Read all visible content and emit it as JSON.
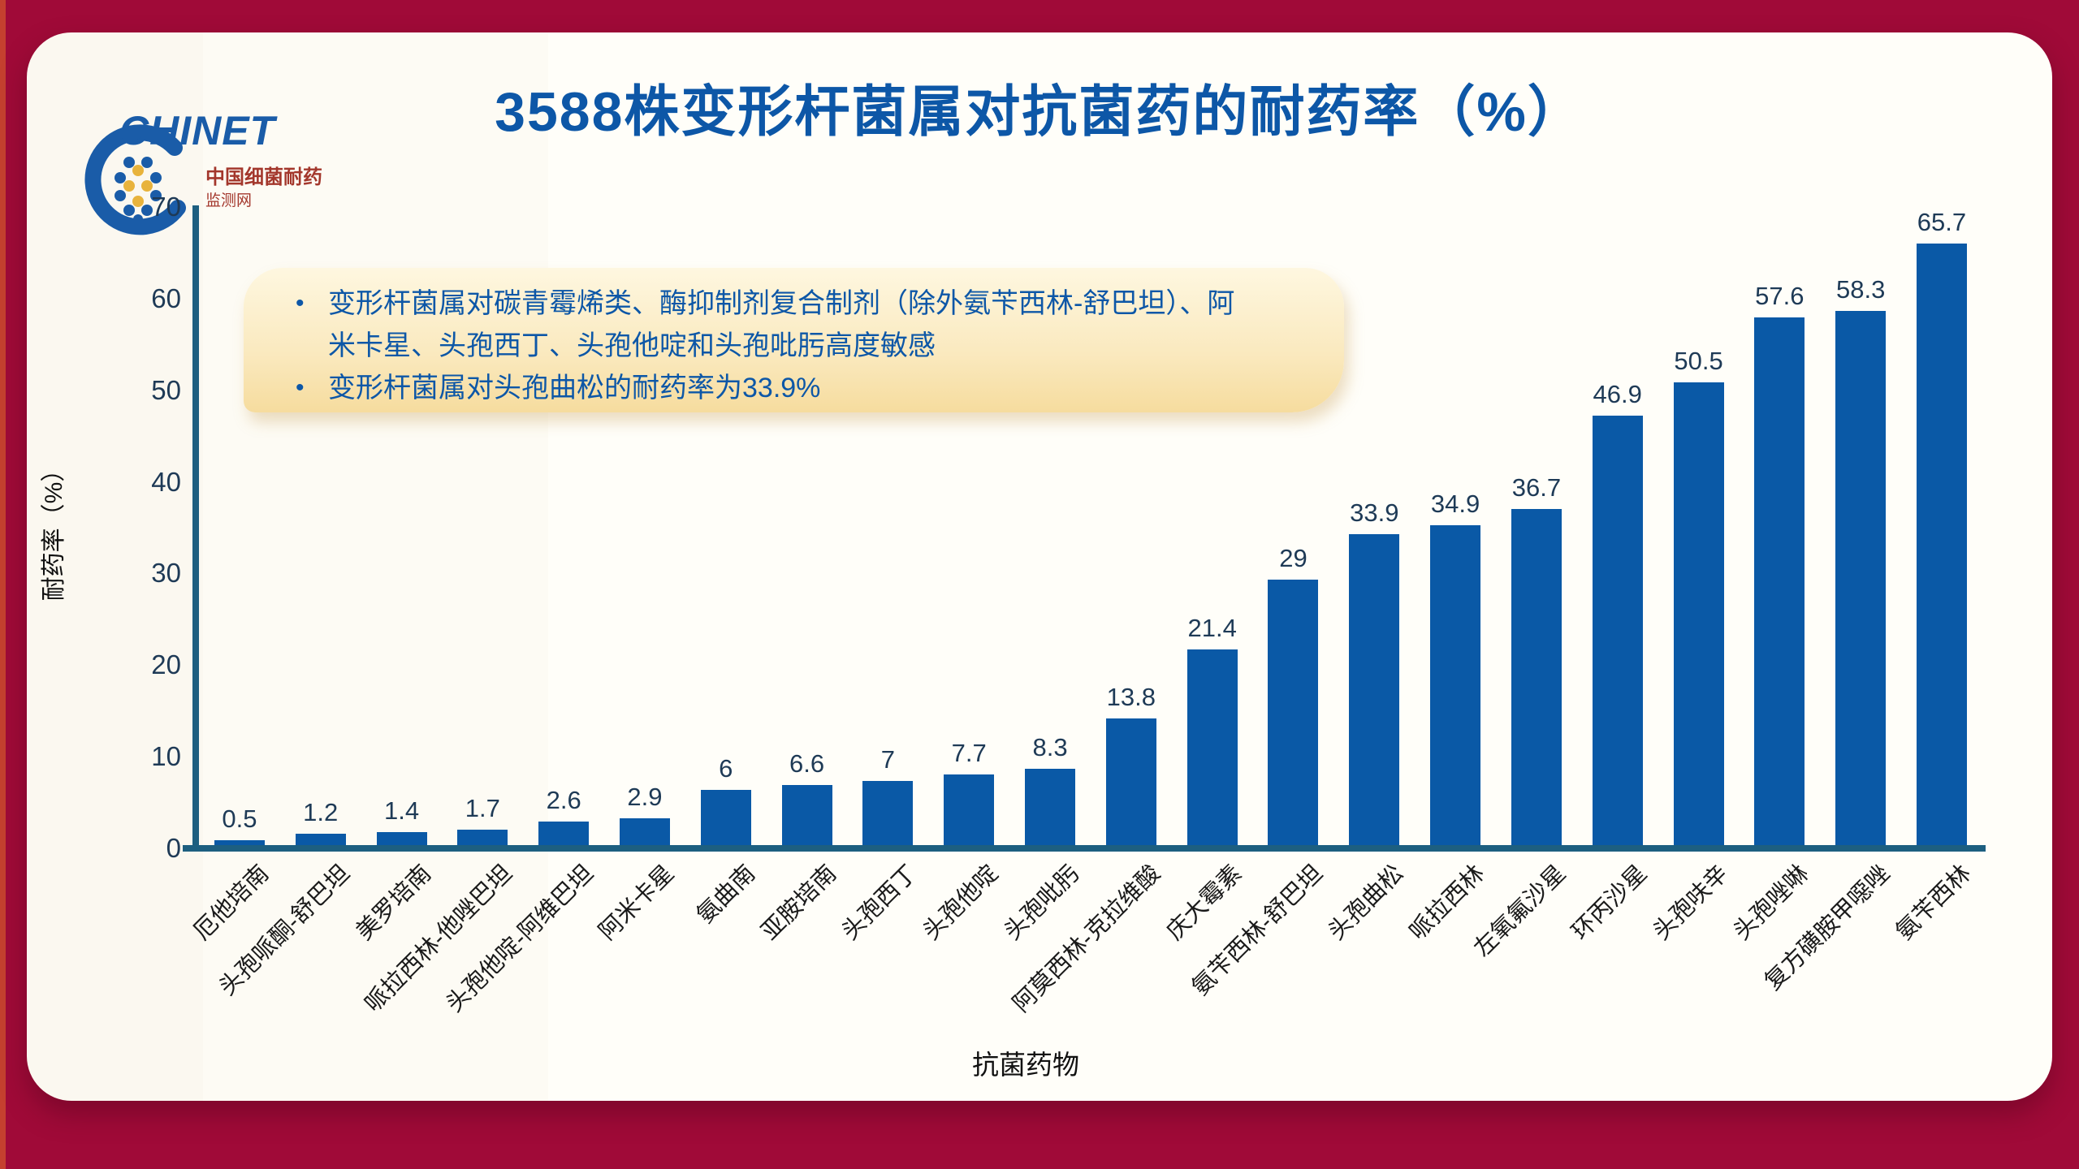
{
  "frame": {
    "bg_color": "#A00A38",
    "edge_accent_color": "#C5402F",
    "card_bg_color": "#FDFBF4"
  },
  "logo": {
    "brand": "CHINET",
    "line1": "中国细菌耐药",
    "line2": "监测网",
    "blue": "#1A5CA8",
    "red": "#A3372C",
    "yellow": "#E8B33C"
  },
  "title": {
    "text": "3588株变形杆菌属对抗菌药的耐药率（%）",
    "color": "#0D57A7"
  },
  "annotation": {
    "bullets": [
      "变形杆菌属对碳青霉烯类、酶抑制剂复合制剂（除外氨苄西林-舒巴坦）、阿米卡星、头孢西丁、头孢他啶和头孢吡肟高度敏感",
      "变形杆菌属对头孢曲松的耐药率为33.9%"
    ],
    "bg_top": "#FEF7E0",
    "bg_bottom": "#F6DC9E",
    "text_color": "#0D57A7"
  },
  "chart_data": {
    "type": "bar",
    "title": "3588株变形杆菌属对抗菌药的耐药率（%）",
    "xlabel": "抗菌药物",
    "ylabel": "耐药率（%）",
    "ylim": [
      0,
      70
    ],
    "y_ticks": [
      0,
      10,
      20,
      30,
      40,
      50,
      60,
      70
    ],
    "grid": false,
    "legend": "none",
    "categories": [
      "厄他培南",
      "头孢哌酮-舒巴坦",
      "美罗培南",
      "哌拉西林-他唑巴坦",
      "头孢他啶-阿维巴坦",
      "阿米卡星",
      "氨曲南",
      "亚胺培南",
      "头孢西丁",
      "头孢他啶",
      "头孢吡肟",
      "阿莫西林-克拉维酸",
      "庆大霉素",
      "氨苄西林-舒巴坦",
      "头孢曲松",
      "哌拉西林",
      "左氧氟沙星",
      "环丙沙星",
      "头孢呋辛",
      "头孢唑啉",
      "复方磺胺甲噁唑",
      "氨苄西林"
    ],
    "values": [
      0.5,
      1.2,
      1.4,
      1.7,
      2.6,
      2.9,
      6,
      6.6,
      7,
      7.7,
      8.3,
      13.8,
      21.4,
      29,
      33.9,
      34.9,
      36.7,
      46.9,
      50.5,
      57.6,
      58.3,
      65.7
    ],
    "bar_color": "#0A59A6",
    "axis_color": "#1D5F80",
    "tick_color": "#1E3A56",
    "value_label_color": "#1E3A56",
    "category_label_color": "#1A1A1A"
  }
}
